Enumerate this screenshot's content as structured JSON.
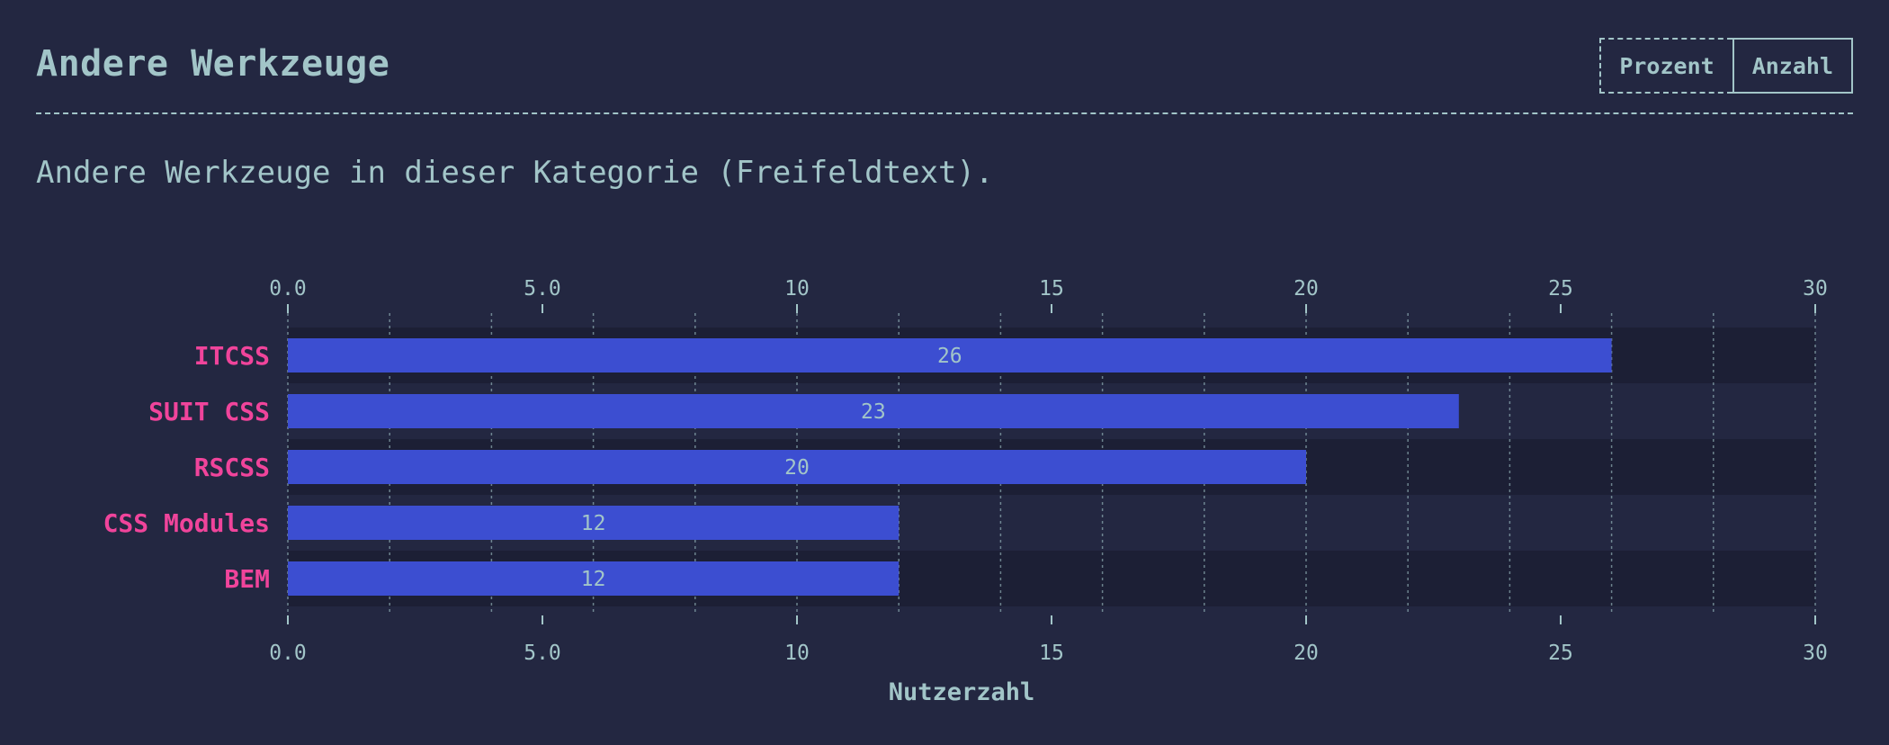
{
  "header": {
    "title": "Andere Werkzeuge",
    "toggle": {
      "percent_label": "Prozent",
      "count_label": "Anzahl",
      "selected": "Anzahl"
    }
  },
  "description": "Andere Werkzeuge in dieser Kategorie (Freifeldtext).",
  "colors": {
    "background": "#232741",
    "text": "#a2c5c8",
    "bar": "#3c4ed1",
    "category_label": "#f0449b",
    "row_dark": "#1c1f35",
    "row_light": "#232741"
  },
  "chart_data": {
    "type": "bar",
    "orientation": "horizontal",
    "categories": [
      "ITCSS",
      "SUIT CSS",
      "RSCSS",
      "CSS Modules",
      "BEM"
    ],
    "values": [
      26,
      23,
      20,
      12,
      12
    ],
    "xlabel": "Nutzerzahl",
    "xlim": [
      0,
      30
    ],
    "x_ticks": [
      "0.0",
      "5.0",
      "10",
      "15",
      "20",
      "25",
      "30"
    ],
    "x_tick_values": [
      0,
      5,
      10,
      15,
      20,
      25,
      30
    ],
    "minor_gridlines_every": 2,
    "x_axis_positions": [
      "top",
      "bottom"
    ],
    "grid": true
  }
}
